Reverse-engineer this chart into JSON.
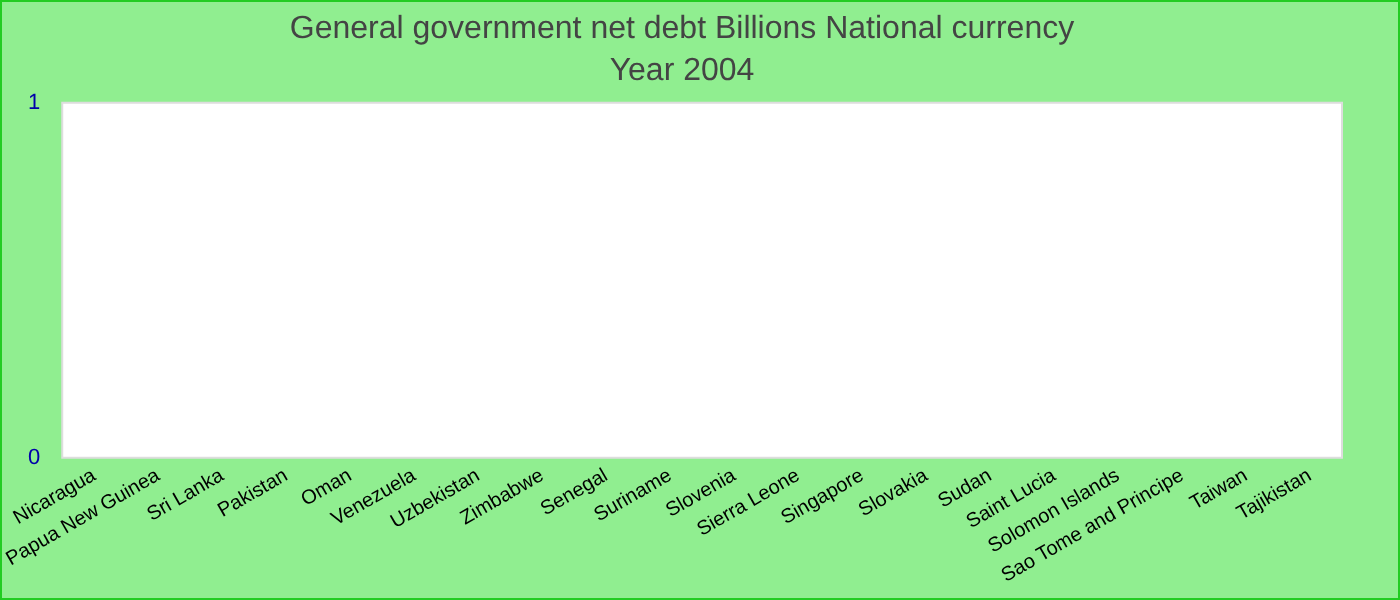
{
  "chart_data": {
    "type": "bar",
    "title": "General government net debt Billions National currency",
    "subtitle": "Year 2004",
    "categories": [
      "Nicaragua",
      "Papua New Guinea",
      "Sri Lanka",
      "Pakistan",
      "Oman",
      "Venezuela",
      "Uzbekistan",
      "Zimbabwe",
      "Senegal",
      "Suriname",
      "Slovenia",
      "Sierra Leone",
      "Singapore",
      "Slovakia",
      "Sudan",
      "Saint Lucia",
      "Solomon Islands",
      "Sao Tome and Principe",
      "Taiwan",
      "Tajikistan"
    ],
    "values": [
      null,
      null,
      null,
      null,
      null,
      null,
      null,
      null,
      null,
      null,
      null,
      null,
      null,
      null,
      null,
      null,
      null,
      null,
      null,
      null
    ],
    "ylim": [
      0,
      1
    ],
    "yticks": [
      0,
      1
    ],
    "grid": false,
    "legend": false
  }
}
